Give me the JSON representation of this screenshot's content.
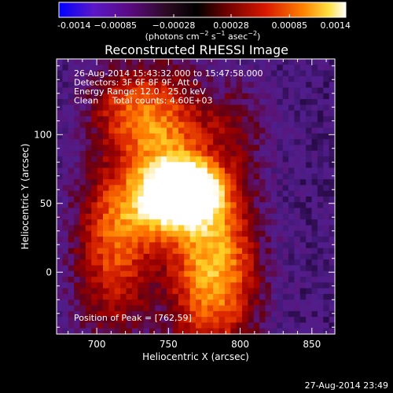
{
  "chart_data": {
    "type": "heatmap",
    "title": "Reconstructed RHESSI Image",
    "xlabel": "Heliocentric X (arcsec)",
    "ylabel": "Heliocentric Y (arcsec)",
    "xlim": [
      672,
      866
    ],
    "ylim": [
      -45,
      155
    ],
    "xticks": [
      700,
      750,
      800,
      850
    ],
    "yticks": [
      0,
      50,
      100
    ],
    "colorbar": {
      "min": -0.0014,
      "max": 0.0014,
      "tick_values": [
        -0.0014,
        -0.00085,
        -0.00028,
        0.00028,
        0.00085,
        0.0014
      ],
      "tick_labels": [
        "-0.0014",
        "−0.00085",
        "−0.00028",
        "0.00028",
        "0.00085",
        "0.0014"
      ],
      "label_parts": {
        "unit_open": "(photons cm",
        "exp1": "−2",
        "mid1": " s",
        "exp2": "−1",
        "mid2": " asec",
        "exp3": "−2",
        "close": ")"
      }
    },
    "annotations": [
      "26-Aug-2014 15:43:32.000 to 15:47:58.000",
      "Detectors: 3F 6F 8F 9F, Att 0",
      "Energy Range: 12.0 - 25.0 keV",
      "Clean     Total counts: 4.60E+03"
    ],
    "peak_label": "Position of Peak = [762,59]",
    "peak": [
      762,
      59
    ],
    "image_sources": [
      {
        "x": 762,
        "y": 59,
        "amp": 1.0,
        "sx": 16,
        "sy": 14
      },
      {
        "x": 745,
        "y": 48,
        "amp": 0.45,
        "sx": 24,
        "sy": 20
      },
      {
        "x": 748,
        "y": 98,
        "amp": 0.55,
        "sx": 20,
        "sy": 34
      },
      {
        "x": 718,
        "y": 120,
        "amp": 0.35,
        "sx": 18,
        "sy": 22
      },
      {
        "x": 712,
        "y": 15,
        "amp": 0.5,
        "sx": 20,
        "sy": 45
      },
      {
        "x": 790,
        "y": 5,
        "amp": 0.55,
        "sx": 18,
        "sy": 45
      },
      {
        "x": 768,
        "y": -5,
        "amp": 0.35,
        "sx": 16,
        "sy": 40
      },
      {
        "x": 795,
        "y": 105,
        "amp": 0.2,
        "sx": 18,
        "sy": 25
      }
    ],
    "image_baseline": 0.08
  },
  "timestamp": "27-Aug-2014 23:49"
}
